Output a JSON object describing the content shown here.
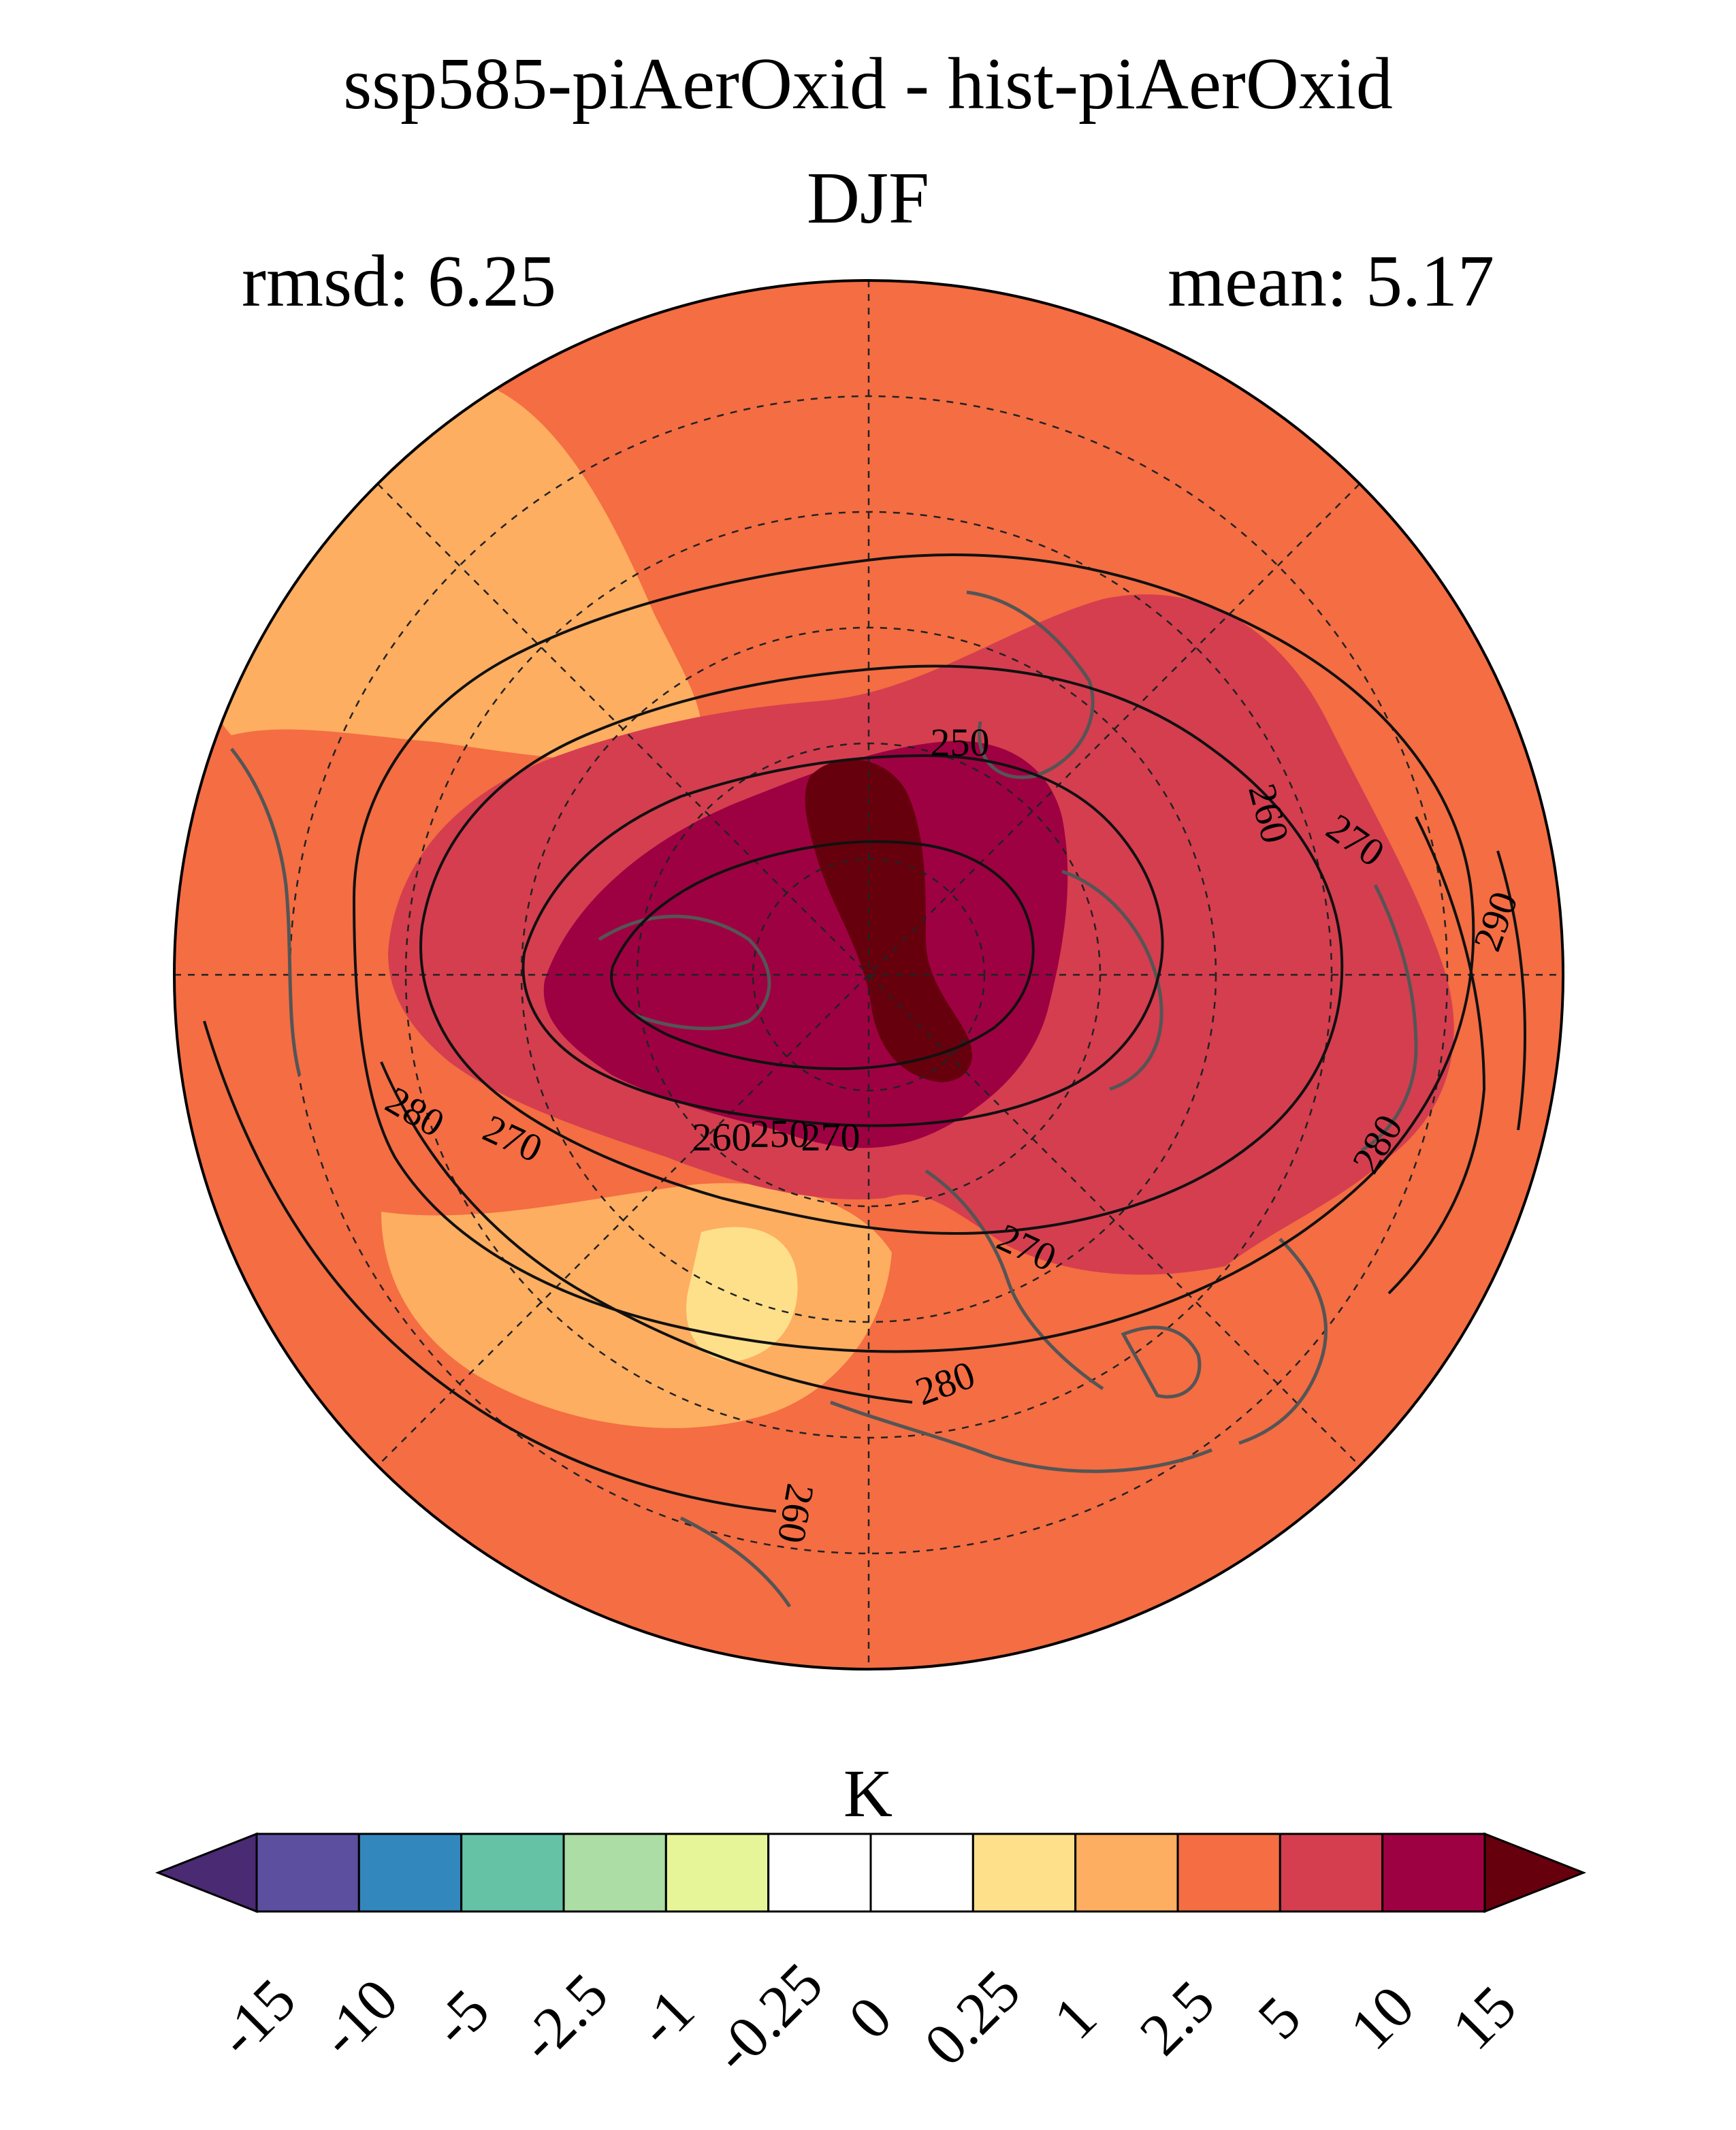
{
  "title": "ssp585-piAerOxid - hist-piAerOxid",
  "season": "DJF",
  "rmsd_label": "rmsd: 6.25",
  "mean_label": "mean: 5.17",
  "projection": "north-polar-stereographic",
  "colorbar": {
    "units": "K",
    "levels": [
      "-15",
      "-10",
      "-5",
      "-2.5",
      "-1",
      "-0.25",
      "0",
      "0.25",
      "1",
      "2.5",
      "5",
      "10",
      "15"
    ],
    "colors": [
      "#4a2a73",
      "#5c4fa0",
      "#3287bd",
      "#66c2a5",
      "#abdda4",
      "#e6f598",
      "#ffffff",
      "#ffffff",
      "#fee08b",
      "#fdae61",
      "#f46d43",
      "#d53e4f",
      "#9e0142",
      "#67000d"
    ],
    "extend": "both"
  },
  "contours": {
    "field": "surface air temperature (K)",
    "labels": [
      "250",
      "250",
      "260",
      "260",
      "260",
      "270",
      "270",
      "270",
      "270",
      "280",
      "280",
      "280",
      "290"
    ]
  },
  "colors": {
    "land_outline": "#555555",
    "contour_line": "#111111",
    "grid_line": "#222222"
  }
}
